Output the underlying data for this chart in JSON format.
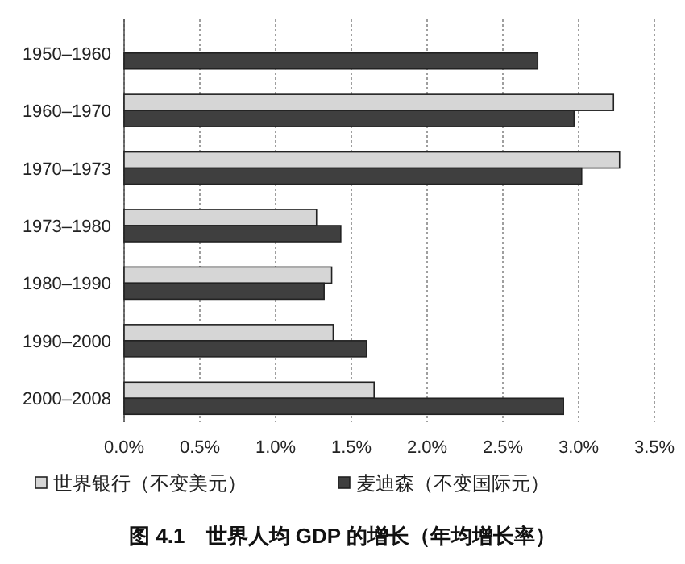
{
  "chart_data": {
    "type": "bar",
    "orientation": "horizontal",
    "title": "图 4.1　世界人均 GDP 的增长（年均增长率）",
    "categories": [
      "1950–1960",
      "1960–1970",
      "1970–1973",
      "1973–1980",
      "1980–1990",
      "1990–2000",
      "2000–2008"
    ],
    "series": [
      {
        "name": "世界银行（不变美元）",
        "color": "#d6d6d6",
        "values": [
          null,
          3.23,
          3.27,
          1.27,
          1.37,
          1.38,
          1.65
        ]
      },
      {
        "name": "麦迪森（不变国际元）",
        "color": "#3f3f3f",
        "values": [
          2.73,
          2.97,
          3.02,
          1.43,
          1.32,
          1.6,
          2.9
        ]
      }
    ],
    "xlim": [
      0,
      3.5
    ],
    "xticks": [
      {
        "value": 0,
        "label": "0.0%"
      },
      {
        "value": 0.5,
        "label": "0.5%"
      },
      {
        "value": 1,
        "label": "1.0%"
      },
      {
        "value": 1.5,
        "label": "1.5%"
      },
      {
        "value": 2,
        "label": "2.0%"
      },
      {
        "value": 2.5,
        "label": "2.5%"
      },
      {
        "value": 3,
        "label": "3.0%"
      },
      {
        "value": 3.5,
        "label": "3.5%"
      }
    ],
    "grid": "x",
    "legend": "bottom"
  }
}
